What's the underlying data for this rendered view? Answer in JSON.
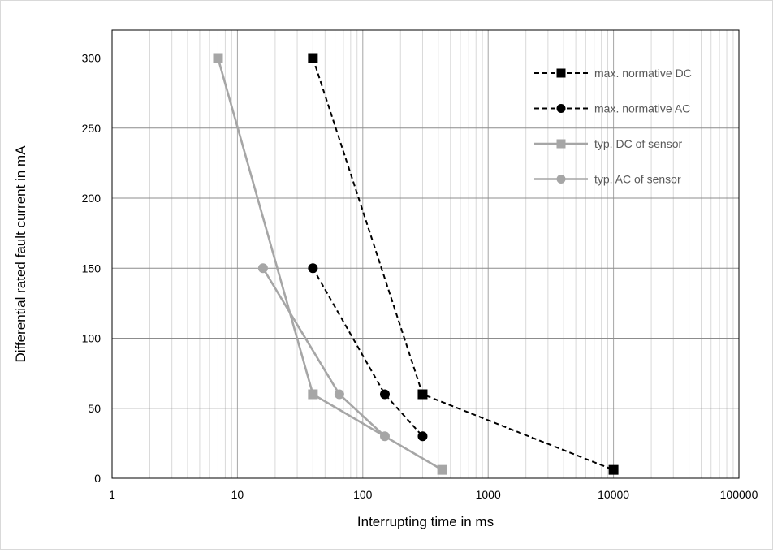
{
  "chart_data": {
    "type": "line",
    "title": "",
    "xlabel": "Interrupting time in ms",
    "ylabel": "Differential rated fault current in mA",
    "x_scale": "log",
    "xlim": [
      1,
      100000
    ],
    "ylim": [
      0,
      320
    ],
    "x_ticks": [
      "1",
      "10",
      "100",
      "1000",
      "10000",
      "100000"
    ],
    "y_ticks": [
      "0",
      "50",
      "100",
      "150",
      "200",
      "250",
      "300"
    ],
    "grid": true,
    "legend_position": "top-right",
    "series": [
      {
        "name": "max. normative DC",
        "color": "#000000",
        "line_style": "dashed",
        "marker": "square",
        "points": [
          [
            40,
            300
          ],
          [
            300,
            60
          ],
          [
            10000,
            6
          ]
        ]
      },
      {
        "name": "max. normative AC",
        "color": "#000000",
        "line_style": "dashed",
        "marker": "circle",
        "points": [
          [
            40,
            150
          ],
          [
            150,
            60
          ],
          [
            300,
            30
          ]
        ]
      },
      {
        "name": "typ. DC of sensor",
        "color": "#a6a6a6",
        "line_style": "solid",
        "marker": "square",
        "points": [
          [
            7,
            300
          ],
          [
            40,
            60
          ],
          [
            430,
            6
          ]
        ]
      },
      {
        "name": "typ. AC of sensor",
        "color": "#a6a6a6",
        "line_style": "solid",
        "marker": "circle",
        "points": [
          [
            16,
            150
          ],
          [
            65,
            60
          ],
          [
            150,
            30
          ]
        ]
      }
    ]
  }
}
